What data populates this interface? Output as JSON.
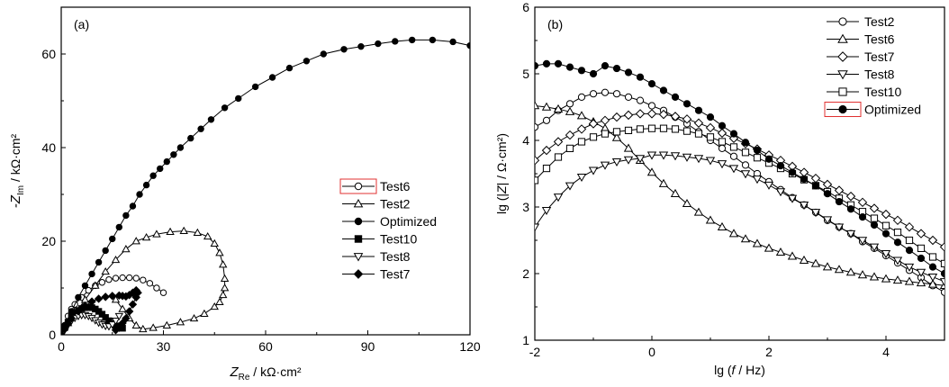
{
  "chart_data": [
    {
      "type": "scatter",
      "panel_label": "(a)",
      "xlabel": {
        "main": "Z",
        "sub": "Re",
        "unit": " / kΩ·cm²"
      },
      "ylabel": {
        "main": "-Z",
        "sub": "Im",
        "unit": " / kΩ·cm²"
      },
      "xlim": [
        0,
        120
      ],
      "ylim": [
        0,
        70
      ],
      "xticks": [
        0,
        30,
        60,
        90,
        120
      ],
      "yticks": [
        0,
        20,
        40,
        60
      ],
      "grid": false,
      "legend_position": "right-middle",
      "series": [
        {
          "name": "Test6",
          "marker": "circle-open",
          "x": [
            0,
            1,
            2,
            3,
            4,
            6,
            8,
            10,
            12,
            14,
            16,
            18,
            20,
            22,
            24,
            26,
            28,
            30
          ],
          "y": [
            0,
            2,
            4,
            5.5,
            6.5,
            8,
            9.5,
            10.5,
            11.2,
            11.8,
            12.1,
            12.2,
            12.2,
            12.1,
            11.7,
            11,
            10,
            9
          ]
        },
        {
          "name": "Test2",
          "marker": "triangle-up-open",
          "x": [
            0,
            2,
            4,
            7,
            10,
            13,
            16,
            19,
            22,
            25,
            28,
            32,
            36,
            40,
            43,
            45,
            46.5,
            47.5,
            48,
            48,
            47.5,
            46.5,
            45,
            42,
            39,
            35,
            31,
            27,
            24,
            22,
            20,
            18,
            16
          ],
          "y": [
            0,
            2.5,
            4.5,
            7.5,
            10.5,
            13.5,
            16,
            18.3,
            20,
            20.8,
            21.5,
            22,
            22.2,
            21.8,
            21,
            19.5,
            17.5,
            15,
            12,
            10,
            8.5,
            7,
            6,
            4.5,
            3.5,
            2.7,
            2,
            1.5,
            1.2,
            2,
            3.5,
            5.5,
            7.5
          ]
        },
        {
          "name": "Optimized",
          "marker": "circle-filled",
          "x": [
            0,
            1,
            3,
            5,
            7,
            9,
            11,
            13,
            15,
            17,
            19,
            21,
            23,
            25,
            27,
            29,
            31,
            33,
            35,
            38,
            41,
            44,
            48,
            52,
            57,
            62,
            67,
            72,
            77,
            83,
            88,
            93,
            98,
            103,
            109,
            115,
            120
          ],
          "y": [
            0,
            2,
            5,
            8,
            10.5,
            13,
            15.5,
            18,
            20.5,
            23,
            25.5,
            27.5,
            30,
            32,
            34,
            35.5,
            37,
            38.5,
            40,
            42,
            44,
            46,
            48.5,
            50.5,
            53,
            55,
            57,
            58.5,
            60,
            61,
            61.6,
            62.2,
            62.7,
            63,
            63,
            62.6,
            61.8
          ]
        },
        {
          "name": "Test10",
          "marker": "square-filled",
          "x": [
            0,
            1,
            2,
            3,
            4,
            5,
            6,
            7,
            8,
            9,
            10,
            11,
            12,
            13,
            14,
            15,
            16,
            17,
            18
          ],
          "y": [
            0,
            1.5,
            2.7,
            3.8,
            4.6,
            5.2,
            5.6,
            5.8,
            5.9,
            5.8,
            5.5,
            5,
            4.4,
            3.7,
            3,
            2.4,
            1.9,
            1.6,
            1.4
          ]
        },
        {
          "name": "Test8",
          "marker": "triangle-down-open",
          "x": [
            0,
            1,
            2,
            3,
            4,
            5,
            6,
            7,
            8,
            9,
            10,
            11,
            12,
            13,
            14,
            15,
            16,
            17
          ],
          "y": [
            0,
            1,
            2.1,
            3,
            3.6,
            4,
            4.2,
            4.2,
            4,
            3.6,
            3.1,
            2.6,
            2.2,
            1.9,
            1.8,
            2.2,
            3,
            4
          ]
        },
        {
          "name": "Test7",
          "marker": "diamond-filled",
          "x": [
            0,
            1,
            2,
            3,
            5,
            7,
            9,
            11,
            13,
            15,
            17,
            18,
            19,
            20,
            21,
            22,
            22.5,
            22,
            21,
            20,
            19,
            18,
            17,
            16
          ],
          "y": [
            0,
            1.2,
            2.4,
            3.5,
            5,
            6.2,
            7.1,
            7.7,
            8.1,
            8.3,
            8.4,
            8.3,
            8.2,
            8.5,
            9,
            9.5,
            9,
            8,
            6.5,
            5,
            3.5,
            2.5,
            1.5,
            1
          ]
        }
      ]
    },
    {
      "type": "scatter",
      "panel_label": "(b)",
      "xlabel": {
        "pre": "lg (",
        "var": "f",
        "post": " / Hz)"
      },
      "ylabel": {
        "pre": "lg (|",
        "var": "Z",
        "post": "| / Ω·cm²)"
      },
      "xlim": [
        -2,
        5
      ],
      "ylim": [
        1,
        6
      ],
      "xticks": [
        -2,
        0,
        2,
        4
      ],
      "yticks": [
        1,
        2,
        3,
        4,
        5,
        6
      ],
      "grid": false,
      "legend_position": "top-right",
      "series": [
        {
          "name": "Test2",
          "marker": "circle-open",
          "x": [
            -2,
            -1.8,
            -1.6,
            -1.4,
            -1.2,
            -1,
            -0.8,
            -0.6,
            -0.4,
            -0.2,
            0,
            0.2,
            0.4,
            0.6,
            0.8,
            1,
            1.2,
            1.4,
            1.6,
            1.8,
            2,
            2.2,
            2.4,
            2.6,
            2.8,
            3,
            3.2,
            3.4,
            3.6,
            3.8,
            4,
            4.2,
            4.4,
            4.6,
            4.8,
            5
          ],
          "y": [
            4.2,
            4.3,
            4.45,
            4.55,
            4.65,
            4.7,
            4.72,
            4.7,
            4.65,
            4.6,
            4.52,
            4.45,
            4.35,
            4.25,
            4.13,
            4,
            3.88,
            3.76,
            3.63,
            3.5,
            3.38,
            3.26,
            3.14,
            3.03,
            2.92,
            2.8,
            2.7,
            2.6,
            2.48,
            2.38,
            2.27,
            2.16,
            2.05,
            1.94,
            1.82,
            1.72
          ]
        },
        {
          "name": "Test6",
          "marker": "triangle-up-open",
          "x": [
            -2,
            -1.8,
            -1.6,
            -1.4,
            -1.2,
            -1,
            -0.8,
            -0.6,
            -0.4,
            -0.2,
            0,
            0.2,
            0.4,
            0.6,
            0.8,
            1,
            1.2,
            1.4,
            1.6,
            1.8,
            2,
            2.2,
            2.4,
            2.6,
            2.8,
            3,
            3.2,
            3.4,
            3.6,
            3.8,
            4,
            4.2,
            4.4,
            4.6,
            4.8,
            5
          ],
          "y": [
            4.52,
            4.5,
            4.47,
            4.43,
            4.37,
            4.28,
            4.18,
            4.04,
            3.88,
            3.7,
            3.52,
            3.35,
            3.2,
            3.05,
            2.92,
            2.8,
            2.7,
            2.6,
            2.52,
            2.45,
            2.38,
            2.32,
            2.26,
            2.2,
            2.15,
            2.1,
            2.06,
            2.02,
            1.98,
            1.95,
            1.92,
            1.9,
            1.88,
            1.86,
            1.84,
            1.82
          ]
        },
        {
          "name": "Test7",
          "marker": "diamond-open",
          "x": [
            -2,
            -1.8,
            -1.6,
            -1.4,
            -1.2,
            -1,
            -0.8,
            -0.6,
            -0.4,
            -0.2,
            0,
            0.2,
            0.4,
            0.6,
            0.8,
            1,
            1.2,
            1.4,
            1.6,
            1.8,
            2,
            2.2,
            2.4,
            2.6,
            2.8,
            3,
            3.2,
            3.4,
            3.6,
            3.8,
            4,
            4.2,
            4.4,
            4.6,
            4.8,
            5
          ],
          "y": [
            3.7,
            3.85,
            3.98,
            4.08,
            4.17,
            4.25,
            4.3,
            4.35,
            4.38,
            4.4,
            4.4,
            4.39,
            4.36,
            4.32,
            4.26,
            4.19,
            4.11,
            4.03,
            3.95,
            3.87,
            3.78,
            3.7,
            3.61,
            3.52,
            3.43,
            3.34,
            3.25,
            3.16,
            3.07,
            2.98,
            2.89,
            2.8,
            2.7,
            2.6,
            2.5,
            2.4
          ]
        },
        {
          "name": "Test8",
          "marker": "triangle-down-open",
          "x": [
            -2,
            -1.8,
            -1.6,
            -1.4,
            -1.2,
            -1,
            -0.8,
            -0.6,
            -0.4,
            -0.2,
            0,
            0.2,
            0.4,
            0.6,
            0.8,
            1,
            1.2,
            1.4,
            1.6,
            1.8,
            2,
            2.2,
            2.4,
            2.6,
            2.8,
            3,
            3.2,
            3.4,
            3.6,
            3.8,
            4,
            4.2,
            4.4,
            4.6,
            4.8,
            5
          ],
          "y": [
            2.7,
            2.95,
            3.15,
            3.32,
            3.45,
            3.55,
            3.63,
            3.68,
            3.71,
            3.73,
            3.78,
            3.78,
            3.77,
            3.75,
            3.73,
            3.7,
            3.65,
            3.58,
            3.5,
            3.42,
            3.33,
            3.23,
            3.13,
            3.03,
            2.92,
            2.81,
            2.7,
            2.6,
            2.5,
            2.4,
            2.3,
            2.2,
            2.1,
            2.02,
            1.95,
            1.88
          ]
        },
        {
          "name": "Test10",
          "marker": "square-open",
          "x": [
            -2,
            -1.8,
            -1.6,
            -1.4,
            -1.2,
            -1,
            -0.8,
            -0.6,
            -0.4,
            -0.2,
            0,
            0.2,
            0.4,
            0.6,
            0.8,
            1,
            1.2,
            1.4,
            1.6,
            1.8,
            2,
            2.2,
            2.4,
            2.6,
            2.8,
            3,
            3.2,
            3.4,
            3.6,
            3.8,
            4,
            4.2,
            4.4,
            4.6,
            4.8,
            5
          ],
          "y": [
            3.4,
            3.58,
            3.75,
            3.88,
            3.98,
            4.05,
            4.1,
            4.13,
            4.15,
            4.17,
            4.18,
            4.18,
            4.17,
            4.14,
            4.1,
            4.05,
            3.98,
            3.9,
            3.82,
            3.74,
            3.66,
            3.58,
            3.5,
            3.41,
            3.32,
            3.23,
            3.13,
            3.03,
            2.93,
            2.83,
            2.72,
            2.62,
            2.5,
            2.38,
            2.25,
            2.15
          ]
        },
        {
          "name": "Optimized",
          "marker": "circle-filled",
          "x": [
            -2,
            -1.8,
            -1.6,
            -1.4,
            -1.2,
            -1,
            -0.8,
            -0.6,
            -0.4,
            -0.2,
            0,
            0.2,
            0.4,
            0.6,
            0.8,
            1,
            1.2,
            1.4,
            1.6,
            1.8,
            2,
            2.2,
            2.4,
            2.6,
            2.8,
            3,
            3.2,
            3.4,
            3.6,
            3.8,
            4,
            4.2,
            4.4,
            4.6,
            4.8,
            5
          ],
          "y": [
            5.12,
            5.15,
            5.15,
            5.1,
            5.05,
            5.0,
            5.12,
            5.08,
            5.02,
            4.95,
            4.85,
            4.75,
            4.65,
            4.55,
            4.45,
            4.35,
            4.22,
            4.1,
            3.97,
            3.85,
            3.72,
            3.62,
            3.52,
            3.42,
            3.32,
            3.2,
            3.08,
            2.97,
            2.85,
            2.73,
            2.6,
            2.47,
            2.35,
            2.23,
            2.1,
            2.0
          ]
        }
      ]
    }
  ]
}
